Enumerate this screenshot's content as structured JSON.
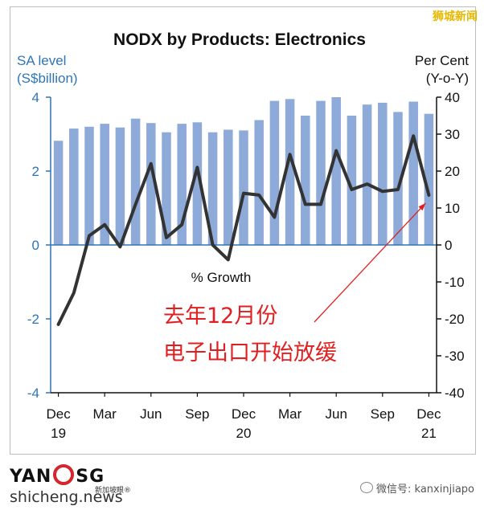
{
  "watermark": "狮城新闻",
  "chart_data": {
    "type": "bar+line",
    "title": "NODX by Products: Electronics",
    "left_axis": {
      "label_line1": "SA level",
      "label_line2": "(S$billion)",
      "ylim": [
        -4,
        4
      ],
      "ticks": [
        4,
        2,
        0,
        -2,
        -4
      ],
      "color": "#2e75b6"
    },
    "right_axis": {
      "label_line1": "Per Cent",
      "label_line2": "(Y-o-Y)",
      "ylim": [
        -40,
        40
      ],
      "ticks": [
        40,
        30,
        20,
        10,
        0,
        -10,
        -20,
        -30,
        -40
      ]
    },
    "x_tick_labels": [
      {
        "label": "Dec",
        "year": "19",
        "index": 0
      },
      {
        "label": "Mar",
        "year": "",
        "index": 3
      },
      {
        "label": "Jun",
        "year": "",
        "index": 6
      },
      {
        "label": "Sep",
        "year": "",
        "index": 9
      },
      {
        "label": "Dec",
        "year": "20",
        "index": 12
      },
      {
        "label": "Mar",
        "year": "",
        "index": 15
      },
      {
        "label": "Jun",
        "year": "",
        "index": 18
      },
      {
        "label": "Sep",
        "year": "",
        "index": 21
      },
      {
        "label": "Dec",
        "year": "21",
        "index": 24
      }
    ],
    "series": [
      {
        "kind": "bar",
        "axis": "left",
        "color": "#8eaad8",
        "values": [
          2.82,
          3.15,
          3.2,
          3.28,
          3.18,
          3.42,
          3.3,
          3.05,
          3.28,
          3.32,
          3.05,
          3.12,
          3.1,
          3.38,
          3.9,
          3.95,
          3.5,
          3.9,
          4.0,
          3.5,
          3.8,
          3.85,
          3.6,
          3.88,
          3.55
        ]
      },
      {
        "kind": "line",
        "axis": "right",
        "name": "% Growth",
        "color": "#333333",
        "values": [
          -21.5,
          -13,
          2.5,
          5.5,
          -0.5,
          11,
          22,
          2,
          5.5,
          21,
          0,
          -4,
          14,
          13.5,
          7.5,
          24.5,
          11,
          11,
          25.5,
          15,
          16.5,
          14.5,
          15,
          29.5,
          13.5
        ]
      }
    ],
    "annotation": {
      "line1": "去年12月份",
      "line2": "电子出口开始放缓",
      "color": "#e02020"
    }
  },
  "footer": {
    "logo_left": "YAN",
    "logo_right": "SG",
    "logo_sub": "新加坡眼®",
    "site": "shicheng.news",
    "wechat": "微信号: kanxinjiapo"
  }
}
